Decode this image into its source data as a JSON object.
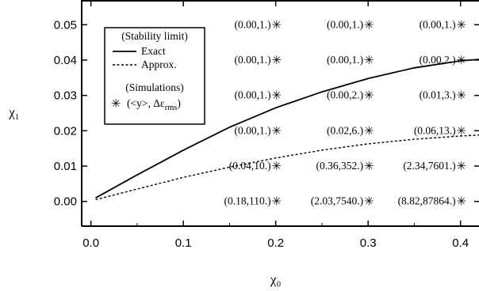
{
  "chart_data": {
    "type": "line",
    "xlabel": "χ₀",
    "ylabel": "χ₁",
    "xlim": [
      -0.01,
      0.42
    ],
    "ylim": [
      -0.007,
      0.057
    ],
    "x_ticks": [
      0.0,
      0.1,
      0.2,
      0.3,
      0.4
    ],
    "x_tick_labels": [
      "0.0",
      "0.1",
      "0.2",
      "0.3",
      "0.4"
    ],
    "y_ticks": [
      0.0,
      0.01,
      0.02,
      0.03,
      0.04,
      0.05
    ],
    "y_tick_labels": [
      "0.00",
      "0.01",
      "0.02",
      "0.03",
      "0.04",
      "0.05"
    ],
    "series": [
      {
        "name": "Exact",
        "style": "solid",
        "x": [
          0.005,
          0.05,
          0.1,
          0.15,
          0.2,
          0.25,
          0.3,
          0.35,
          0.4,
          0.42
        ],
        "y": [
          0.001,
          0.0075,
          0.0145,
          0.021,
          0.0265,
          0.031,
          0.0348,
          0.0378,
          0.0398,
          0.0402
        ]
      },
      {
        "name": "Approx.",
        "style": "dashed",
        "x": [
          0.005,
          0.05,
          0.1,
          0.15,
          0.2,
          0.25,
          0.3,
          0.35,
          0.4,
          0.42
        ],
        "y": [
          0.0005,
          0.0035,
          0.0068,
          0.0097,
          0.0123,
          0.0145,
          0.0163,
          0.0176,
          0.0185,
          0.0188
        ]
      }
    ],
    "points": [
      {
        "x": 0.2,
        "y": 0.05,
        "label": "(0.00,1.)"
      },
      {
        "x": 0.3,
        "y": 0.05,
        "label": "(0.00,1.)"
      },
      {
        "x": 0.4,
        "y": 0.05,
        "label": "(0.00,1.)"
      },
      {
        "x": 0.2,
        "y": 0.04,
        "label": "(0.00,1.)"
      },
      {
        "x": 0.3,
        "y": 0.04,
        "label": "(0.00,1.)"
      },
      {
        "x": 0.4,
        "y": 0.04,
        "label": "(0.00,2.)"
      },
      {
        "x": 0.2,
        "y": 0.03,
        "label": "(0.00,1.)"
      },
      {
        "x": 0.3,
        "y": 0.03,
        "label": "(0.00,2.)"
      },
      {
        "x": 0.4,
        "y": 0.03,
        "label": "(0.01,3.)"
      },
      {
        "x": 0.2,
        "y": 0.02,
        "label": "(0.00,1.)"
      },
      {
        "x": 0.3,
        "y": 0.02,
        "label": "(0.02,6.)"
      },
      {
        "x": 0.4,
        "y": 0.02,
        "label": "(0.06,13.)"
      },
      {
        "x": 0.2,
        "y": 0.01,
        "label": "(0.04,10.)"
      },
      {
        "x": 0.3,
        "y": 0.01,
        "label": "(0.36,352.)"
      },
      {
        "x": 0.4,
        "y": 0.01,
        "label": "(2.34,7601.)"
      },
      {
        "x": 0.2,
        "y": 0.0,
        "label": "(0.18,110.)"
      },
      {
        "x": 0.3,
        "y": 0.0,
        "label": "(2.03,7540.)"
      },
      {
        "x": 0.4,
        "y": 0.0,
        "label": "(8.82,87864.)"
      }
    ],
    "legend": {
      "position": "top-left",
      "heading_lines": "(Stability limit)",
      "exact_label": "Exact",
      "approx_label": "Approx.",
      "sim_heading": "(Simulations)",
      "sim_marker_glyph": "✳",
      "sim_label_main": "(<y>, Δε",
      "sim_label_sub": "rms",
      "sim_label_end": ")"
    }
  }
}
